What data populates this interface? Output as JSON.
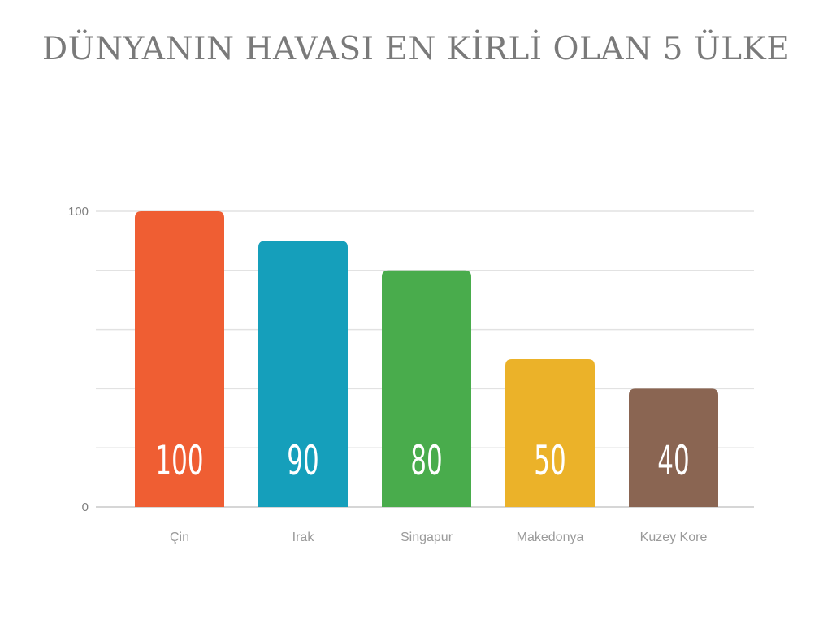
{
  "title": "DÜNYANIN HAVASI EN KİRLİ OLAN 5 ÜLKE",
  "chart_data": {
    "type": "bar",
    "title": "DÜNYANIN HAVASI EN KİRLİ OLAN 5 ÜLKE",
    "xlabel": "",
    "ylabel": "",
    "categories": [
      "Çin",
      "Irak",
      "Singapur",
      "Makedonya",
      "Kuzey Kore"
    ],
    "values": [
      100,
      90,
      80,
      50,
      40
    ],
    "value_labels": [
      "100",
      "90",
      "80",
      "50",
      "40"
    ],
    "colors": [
      "#ef5e33",
      "#159fbb",
      "#49ac4c",
      "#ebb229",
      "#8a6552"
    ],
    "ylim": [
      0,
      100
    ],
    "ytick_labels": [
      "0",
      "100"
    ],
    "gridline_values": [
      0,
      20,
      40,
      60,
      80,
      100
    ],
    "grid": true,
    "legend": "none"
  }
}
